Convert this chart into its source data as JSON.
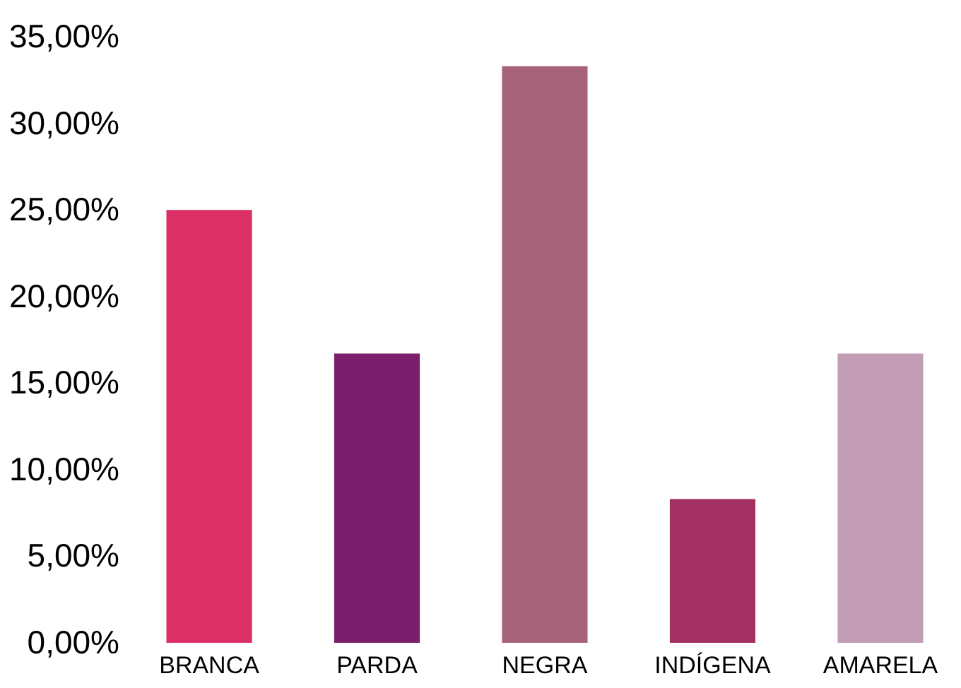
{
  "chart_data": {
    "type": "bar",
    "categories": [
      "BRANCA",
      "PARDA",
      "NEGRA",
      "INDÍGENA",
      "AMARELA"
    ],
    "values": [
      25,
      16.7,
      33.3,
      8.3,
      16.7
    ],
    "colors": [
      "#dc2f66",
      "#7a1f6c",
      "#a66379",
      "#a23060",
      "#c39db4"
    ],
    "ylim": [
      0,
      35
    ],
    "yticks": [
      {
        "value": 0,
        "label": "0,00%"
      },
      {
        "value": 5,
        "label": "5,00%"
      },
      {
        "value": 10,
        "label": "10,00%"
      },
      {
        "value": 15,
        "label": "15,00%"
      },
      {
        "value": 20,
        "label": "20,00%"
      },
      {
        "value": 25,
        "label": "25,00%"
      },
      {
        "value": 30,
        "label": "30,00%"
      },
      {
        "value": 35,
        "label": "35,00%"
      }
    ],
    "grid": false
  }
}
